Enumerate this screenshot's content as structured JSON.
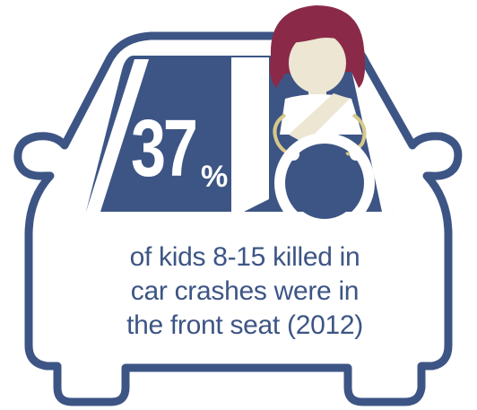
{
  "statistic": {
    "value": "37",
    "unit": "%"
  },
  "caption": {
    "line1": "of kids 8-15 killed in",
    "line2": "car crashes were in",
    "line3": "the front seat (2012)"
  },
  "colors": {
    "outline": "#3d5585",
    "window": "#3d5585",
    "hair": "#8a2a48",
    "skin": "#ece6d3",
    "seatbelt_trim": "#d8c98a",
    "text": "#3d5585",
    "background": "#ffffff"
  },
  "icons": [
    "car-icon",
    "driver-icon",
    "steering-wheel-icon",
    "seatbelt-icon"
  ]
}
